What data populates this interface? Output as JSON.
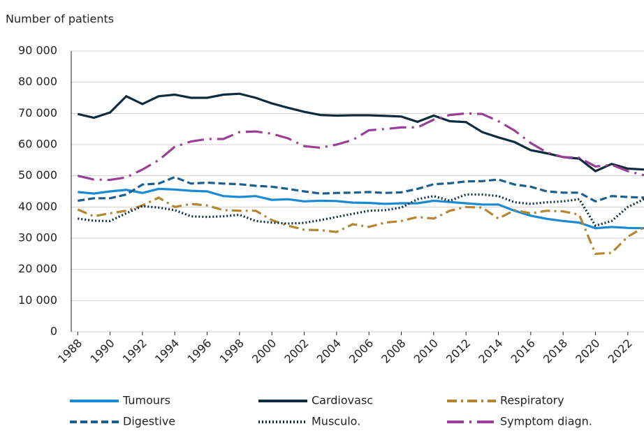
{
  "chart_data": {
    "type": "line",
    "ylabel": "Number of patients",
    "x": [
      1988,
      1989,
      1990,
      1991,
      1992,
      1993,
      1994,
      1995,
      1996,
      1997,
      1998,
      1999,
      2000,
      2001,
      2002,
      2003,
      2004,
      2005,
      2006,
      2007,
      2008,
      2009,
      2010,
      2011,
      2012,
      2013,
      2014,
      2015,
      2016,
      2017,
      2018,
      2019,
      2020,
      2021,
      2022,
      2023
    ],
    "xlim": [
      1987.6,
      2023
    ],
    "xticks": [
      1988,
      1990,
      1992,
      1994,
      1996,
      1998,
      2000,
      2002,
      2004,
      2006,
      2008,
      2010,
      2012,
      2014,
      2016,
      2018,
      2020,
      2022
    ],
    "ylim": [
      0,
      90000
    ],
    "yticks": [
      0,
      {
        "value": 10000,
        "label": "10 000"
      },
      {
        "value": 20000,
        "label": "20 000"
      },
      {
        "value": 30000,
        "label": "30 000"
      },
      {
        "value": 40000,
        "label": "40 000"
      },
      {
        "value": 50000,
        "label": "50 000"
      },
      {
        "value": 60000,
        "label": "60 000"
      },
      {
        "value": 70000,
        "label": "70 000"
      },
      {
        "value": 80000,
        "label": "80 000"
      },
      {
        "value": 90000,
        "label": "90 000"
      }
    ],
    "grid": true,
    "series": [
      {
        "name": "Tumours",
        "color": "#1a8ad4",
        "linestyle": "solid",
        "values": [
          44800,
          44300,
          45000,
          45500,
          44500,
          45800,
          45600,
          45200,
          45000,
          43500,
          43200,
          43500,
          42300,
          42500,
          41800,
          42000,
          41900,
          41400,
          41300,
          41000,
          41200,
          41200,
          42000,
          41600,
          41200,
          40800,
          40800,
          38800,
          37200,
          36200,
          35500,
          35000,
          33200,
          33600,
          33300,
          33200
        ]
      },
      {
        "name": "Cardiovasc",
        "color": "#0d2b3e",
        "linestyle": "solid",
        "values": [
          69800,
          68600,
          70300,
          75500,
          73000,
          75500,
          76000,
          75000,
          75000,
          76000,
          76300,
          75000,
          73200,
          71800,
          70500,
          69500,
          69300,
          69400,
          69400,
          69200,
          69000,
          67300,
          69300,
          67500,
          67200,
          64000,
          62300,
          60800,
          58200,
          57200,
          56000,
          55500,
          51500,
          53800,
          52300,
          52000
        ]
      },
      {
        "name": "Respiratory",
        "color": "#b5852f",
        "linestyle": "dashdot",
        "values": [
          39200,
          37000,
          38000,
          38800,
          40500,
          43000,
          40000,
          41000,
          40500,
          39000,
          38800,
          38800,
          35800,
          34000,
          32700,
          32600,
          32000,
          34500,
          33600,
          35000,
          35500,
          36800,
          36300,
          38800,
          40000,
          39800,
          36300,
          39000,
          38000,
          38800,
          38600,
          37500,
          25000,
          25300,
          30500,
          33500
        ]
      },
      {
        "name": "Digestive",
        "color": "#1a5f8f",
        "linestyle": "dashed",
        "values": [
          42000,
          42800,
          42800,
          44000,
          47200,
          47500,
          49600,
          47500,
          47800,
          47500,
          47300,
          46800,
          46500,
          45800,
          45000,
          44300,
          44500,
          44600,
          44800,
          44500,
          44700,
          45800,
          47300,
          47600,
          48200,
          48300,
          48800,
          47200,
          46500,
          45000,
          44600,
          44600,
          41800,
          43500,
          43200,
          43000
        ]
      },
      {
        "name": "Musculo.",
        "color": "#0d2b3e",
        "linestyle": "dotted",
        "values": [
          36300,
          35600,
          35500,
          38000,
          40300,
          39800,
          39000,
          37000,
          36800,
          37000,
          37500,
          35500,
          35000,
          34700,
          34900,
          35800,
          36800,
          37800,
          38800,
          39000,
          39800,
          42500,
          43500,
          42000,
          44000,
          44000,
          43500,
          41500,
          41000,
          41500,
          41800,
          42500,
          34000,
          35500,
          40000,
          42500
        ]
      },
      {
        "name": "Symptom diagn.",
        "color": "#9b3f96",
        "linestyle": "longdashdot",
        "values": [
          50000,
          48800,
          48700,
          49500,
          52000,
          55000,
          59300,
          61000,
          61800,
          61800,
          64000,
          64200,
          63500,
          62000,
          59500,
          59000,
          60000,
          61500,
          64600,
          65000,
          65500,
          65500,
          68000,
          69500,
          70000,
          69800,
          67500,
          64500,
          60500,
          57500,
          56000,
          55800,
          53000,
          53500,
          51500,
          50200
        ]
      }
    ]
  }
}
